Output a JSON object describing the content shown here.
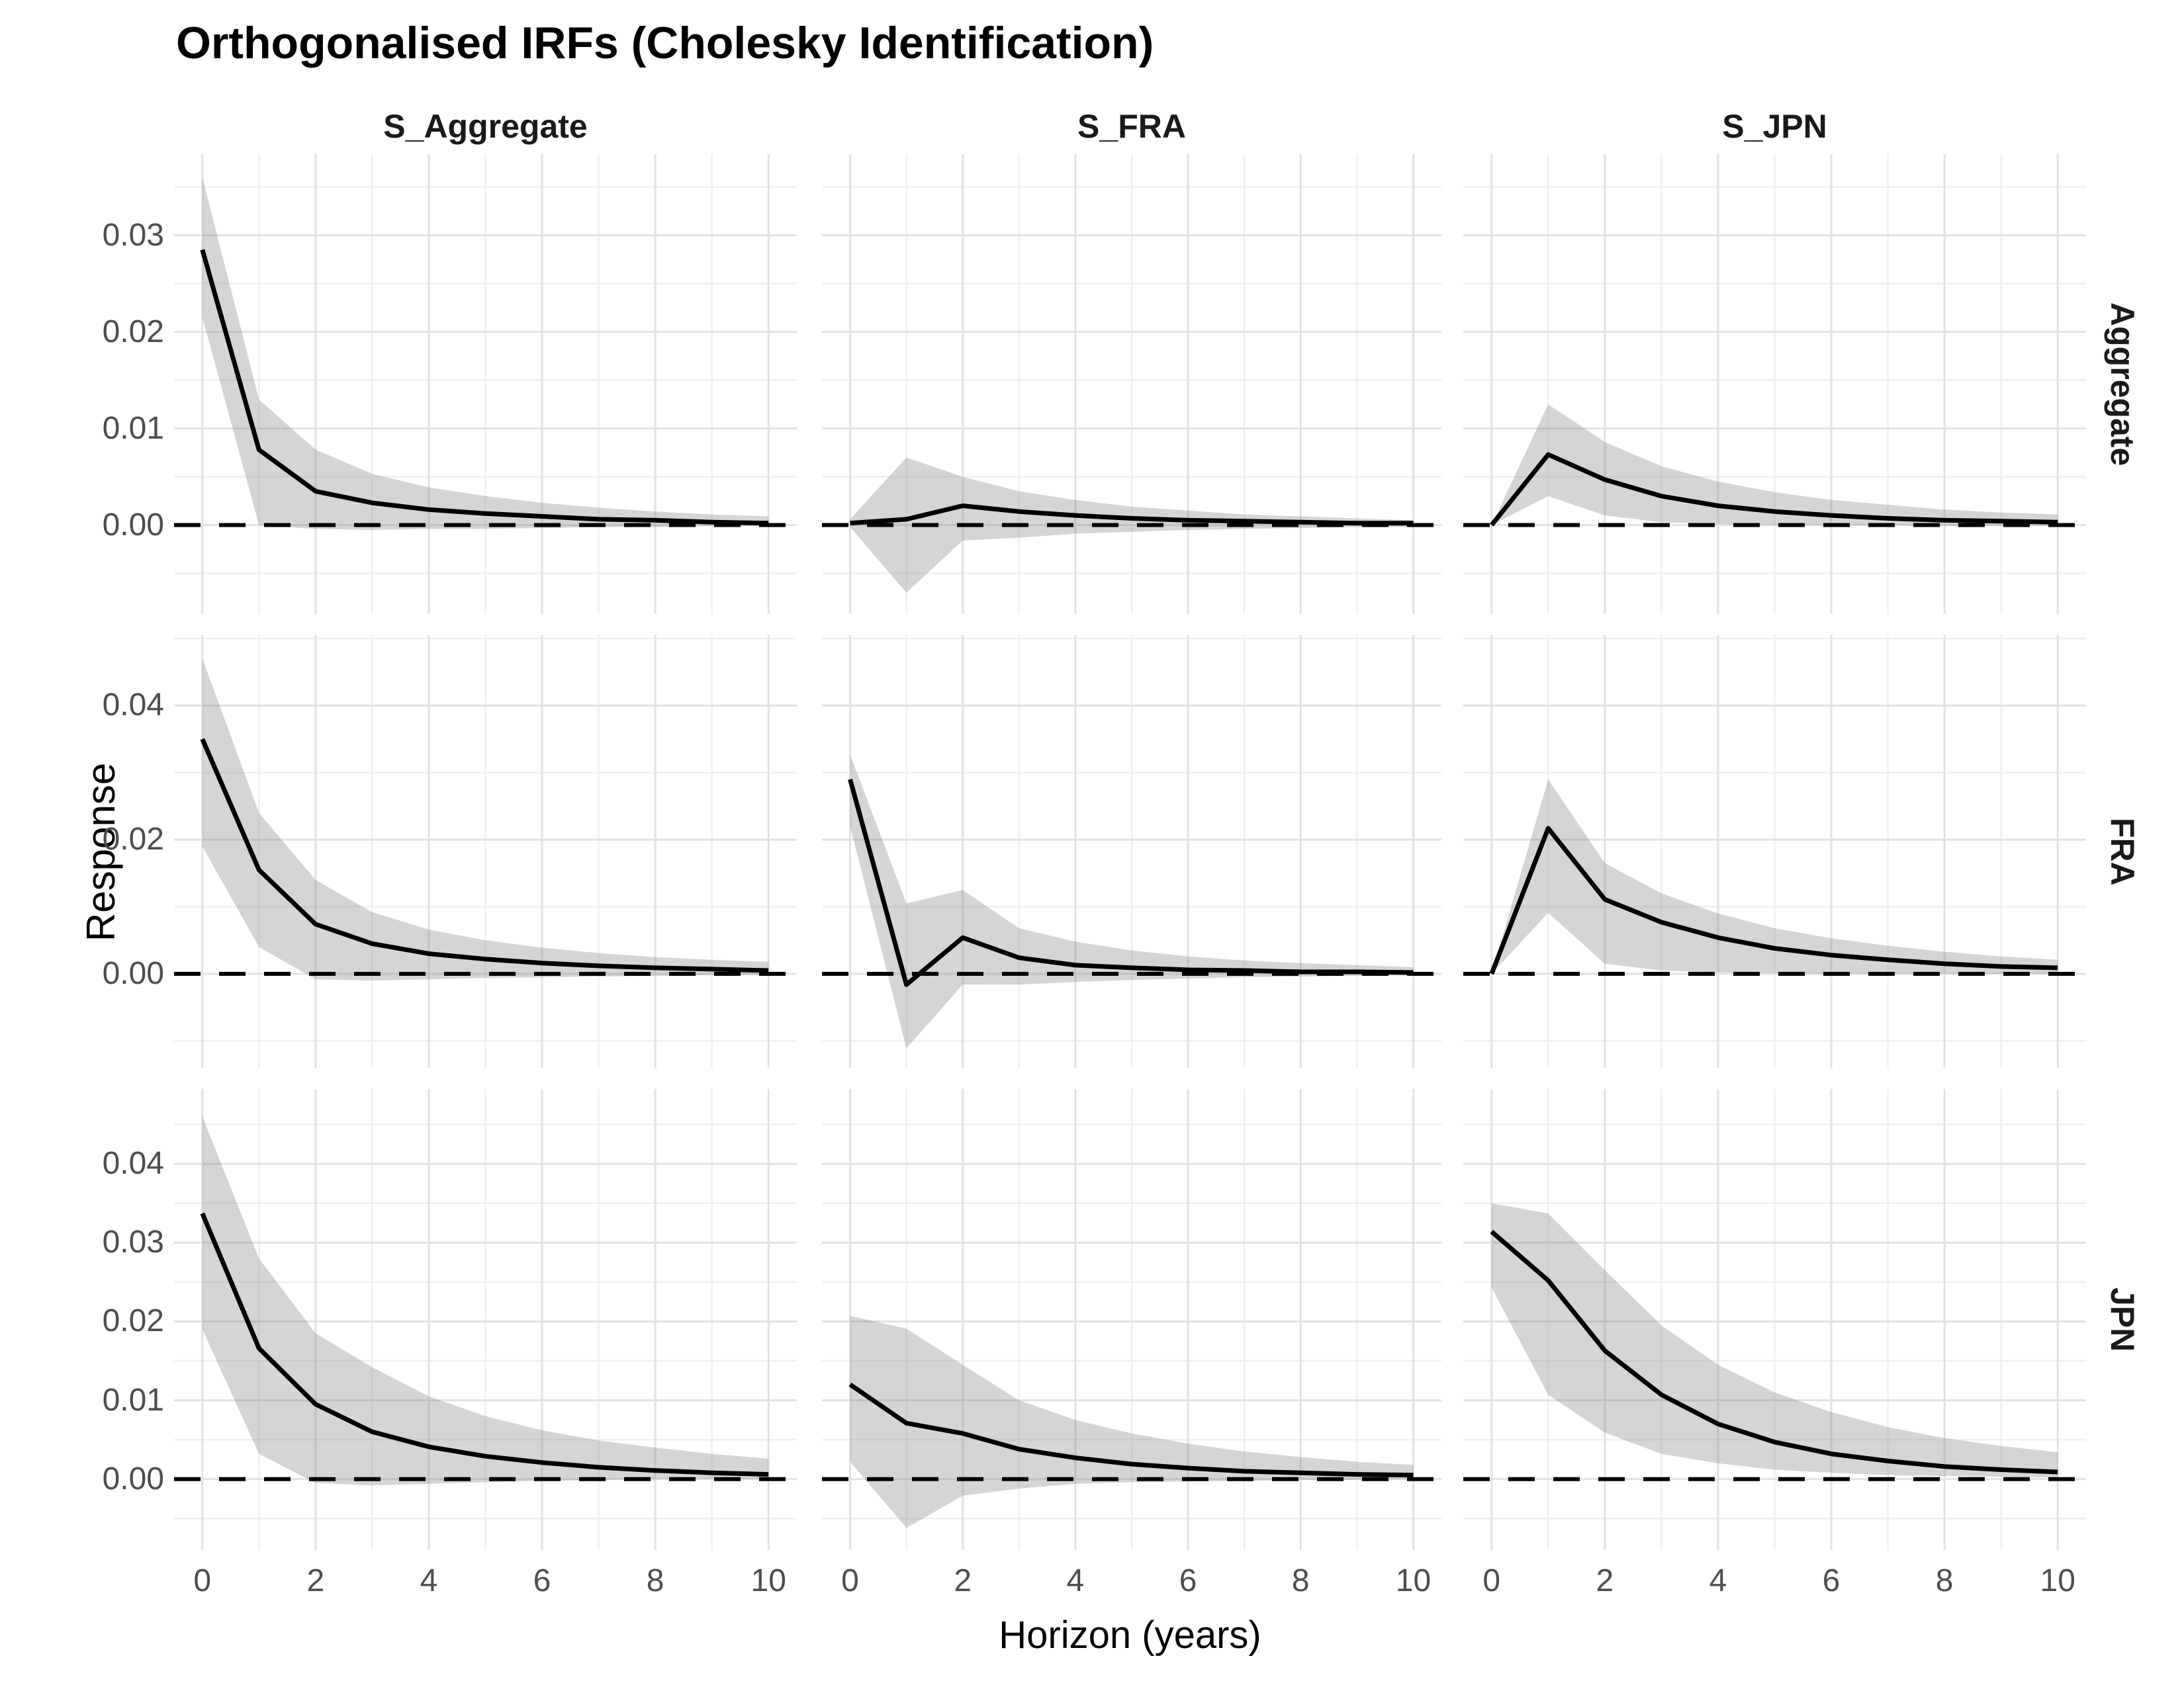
{
  "title": "Orthogonalised IRFs (Cholesky Identification)",
  "axes": {
    "x_title": "Horizon (years)",
    "y_title": "Response"
  },
  "colors": {
    "line": "#000000",
    "zero_line": "#000000",
    "ribbon": "rgba(127,127,127,0.33)",
    "grid_major": "#e2e2e2",
    "grid_minor": "#f0f0f0",
    "tick_text": "#4d4d4d",
    "strip_text": "#1a1a1a",
    "background": "#ffffff"
  },
  "chart_data": {
    "type": "line",
    "x": [
      0,
      1,
      2,
      3,
      4,
      5,
      6,
      7,
      8,
      9,
      10
    ],
    "x_ticks": [
      0,
      2,
      4,
      6,
      8,
      10
    ],
    "xlim": [
      -0.5,
      10.5
    ],
    "grid": true,
    "legend": "none",
    "col_strips": [
      "S_Aggregate",
      "S_FRA",
      "S_JPN"
    ],
    "row_strips": [
      "Aggregate",
      "FRA",
      "JPN"
    ],
    "rows": [
      {
        "label": "Aggregate",
        "ylim": [
          -0.0092,
          0.0384
        ],
        "tick_values": [
          0.0,
          0.01,
          0.02,
          0.03
        ],
        "tick_labels": [
          "0.00",
          "0.01",
          "0.02",
          "0.03"
        ],
        "minor_values": [
          -0.005,
          0.005,
          0.015,
          0.025,
          0.035
        ]
      },
      {
        "label": "FRA",
        "ylim": [
          -0.014,
          0.0505
        ],
        "tick_values": [
          0.0,
          0.02,
          0.04
        ],
        "tick_labels": [
          "0.00",
          "0.02",
          "0.04"
        ],
        "minor_values": [
          -0.01,
          0.01,
          0.03,
          0.05
        ]
      },
      {
        "label": "JPN",
        "ylim": [
          -0.009,
          0.0495
        ],
        "tick_values": [
          0.0,
          0.01,
          0.02,
          0.03,
          0.04
        ],
        "tick_labels": [
          "0.00",
          "0.01",
          "0.02",
          "0.03",
          "0.04"
        ],
        "minor_values": [
          -0.005,
          0.005,
          0.015,
          0.025,
          0.035,
          0.045
        ]
      }
    ],
    "panels": [
      {
        "row": 0,
        "col": 0,
        "response": "Aggregate",
        "shock": "S_Aggregate",
        "irf": [
          0.0285,
          0.0078,
          0.0035,
          0.0023,
          0.0016,
          0.0012,
          0.0009,
          0.0006,
          0.0005,
          0.0003,
          0.0002
        ],
        "upper": [
          0.036,
          0.013,
          0.0078,
          0.0053,
          0.0039,
          0.003,
          0.0023,
          0.0018,
          0.0014,
          0.0011,
          0.0009
        ],
        "lower": [
          0.0215,
          0.0,
          -0.0004,
          -0.0005,
          -0.0004,
          -0.0004,
          -0.0003,
          -0.0002,
          -0.0002,
          -0.0001,
          -0.0001
        ]
      },
      {
        "row": 0,
        "col": 1,
        "response": "Aggregate",
        "shock": "S_FRA",
        "irf": [
          0.0002,
          0.0006,
          0.002,
          0.0014,
          0.001,
          0.0007,
          0.0005,
          0.0004,
          0.0003,
          0.0002,
          0.0002
        ],
        "upper": [
          0.0006,
          0.007,
          0.005,
          0.0035,
          0.0026,
          0.0019,
          0.0015,
          0.0011,
          0.0009,
          0.0007,
          0.0005
        ],
        "lower": [
          -0.0002,
          -0.007,
          -0.0016,
          -0.0013,
          -0.0009,
          -0.0007,
          -0.0005,
          -0.0004,
          -0.0003,
          -0.0002,
          -0.0002
        ]
      },
      {
        "row": 0,
        "col": 2,
        "response": "Aggregate",
        "shock": "S_JPN",
        "irf": [
          0.0,
          0.0073,
          0.0047,
          0.003,
          0.002,
          0.0014,
          0.001,
          0.0007,
          0.0005,
          0.0004,
          0.0003
        ],
        "upper": [
          0.0,
          0.0125,
          0.0086,
          0.0061,
          0.0045,
          0.0034,
          0.0026,
          0.0021,
          0.0016,
          0.0013,
          0.0011
        ],
        "lower": [
          0.0,
          0.003,
          0.001,
          0.0003,
          0.0001,
          0.0,
          0.0,
          0.0,
          -0.0001,
          -0.0001,
          -0.0001
        ]
      },
      {
        "row": 1,
        "col": 0,
        "response": "FRA",
        "shock": "S_Aggregate",
        "irf": [
          0.035,
          0.0155,
          0.0074,
          0.0045,
          0.003,
          0.0022,
          0.0016,
          0.0012,
          0.0009,
          0.0007,
          0.0005
        ],
        "upper": [
          0.047,
          0.024,
          0.014,
          0.0092,
          0.0066,
          0.005,
          0.0039,
          0.0031,
          0.0025,
          0.0021,
          0.0018
        ],
        "lower": [
          0.019,
          0.004,
          -0.0008,
          -0.001,
          -0.0008,
          -0.0006,
          -0.0005,
          -0.0004,
          -0.0003,
          -0.0002,
          -0.0002
        ]
      },
      {
        "row": 1,
        "col": 1,
        "response": "FRA",
        "shock": "S_FRA",
        "irf": [
          0.029,
          -0.0016,
          0.0054,
          0.0024,
          0.0013,
          0.0009,
          0.0006,
          0.0005,
          0.0003,
          0.0003,
          0.0002
        ],
        "upper": [
          0.0327,
          0.0105,
          0.0125,
          0.0068,
          0.0048,
          0.0035,
          0.0026,
          0.002,
          0.0016,
          0.0013,
          0.001
        ],
        "lower": [
          0.022,
          -0.0111,
          -0.0016,
          -0.0016,
          -0.0012,
          -0.0009,
          -0.0007,
          -0.0005,
          -0.0004,
          -0.0003,
          -0.0002
        ]
      },
      {
        "row": 1,
        "col": 2,
        "response": "FRA",
        "shock": "S_JPN",
        "irf": [
          0.0,
          0.0217,
          0.0111,
          0.0077,
          0.0054,
          0.0038,
          0.0028,
          0.0021,
          0.0015,
          0.0011,
          0.0009
        ],
        "upper": [
          0.0,
          0.029,
          0.0165,
          0.012,
          0.009,
          0.0068,
          0.0053,
          0.0042,
          0.0033,
          0.0026,
          0.0021
        ],
        "lower": [
          0.0,
          0.0091,
          0.0015,
          0.0005,
          0.0002,
          0.0001,
          0.0,
          0.0,
          0.0,
          0.0,
          0.0
        ]
      },
      {
        "row": 2,
        "col": 0,
        "response": "JPN",
        "shock": "S_Aggregate",
        "irf": [
          0.0337,
          0.0166,
          0.0095,
          0.006,
          0.0041,
          0.0029,
          0.0021,
          0.0015,
          0.0011,
          0.0008,
          0.0006
        ],
        "upper": [
          0.046,
          0.028,
          0.0185,
          0.0142,
          0.0105,
          0.008,
          0.0062,
          0.0049,
          0.004,
          0.0032,
          0.0026
        ],
        "lower": [
          0.019,
          0.0032,
          -0.0005,
          -0.0008,
          -0.0006,
          -0.0004,
          -0.0002,
          -0.0001,
          0.0,
          0.0,
          0.0
        ]
      },
      {
        "row": 2,
        "col": 1,
        "response": "JPN",
        "shock": "S_FRA",
        "irf": [
          0.012,
          0.0071,
          0.0058,
          0.0038,
          0.0027,
          0.0019,
          0.0014,
          0.001,
          0.0008,
          0.0006,
          0.0005
        ],
        "upper": [
          0.0207,
          0.0191,
          0.0145,
          0.01,
          0.0075,
          0.0058,
          0.0045,
          0.0035,
          0.0028,
          0.0022,
          0.0018
        ],
        "lower": [
          0.0022,
          -0.0062,
          -0.0021,
          -0.0012,
          -0.0006,
          -0.0004,
          -0.0003,
          -0.0002,
          -0.0001,
          -0.0001,
          0.0
        ]
      },
      {
        "row": 2,
        "col": 2,
        "response": "JPN",
        "shock": "S_JPN",
        "irf": [
          0.0314,
          0.0252,
          0.0163,
          0.0107,
          0.007,
          0.0047,
          0.0032,
          0.0023,
          0.0016,
          0.0012,
          0.0009
        ],
        "upper": [
          0.035,
          0.0337,
          0.0265,
          0.0195,
          0.0145,
          0.011,
          0.0085,
          0.0066,
          0.0052,
          0.0042,
          0.0034
        ],
        "lower": [
          0.0243,
          0.0107,
          0.0059,
          0.0032,
          0.002,
          0.0012,
          0.0008,
          0.0005,
          0.0004,
          0.0003,
          0.0002
        ]
      }
    ]
  }
}
